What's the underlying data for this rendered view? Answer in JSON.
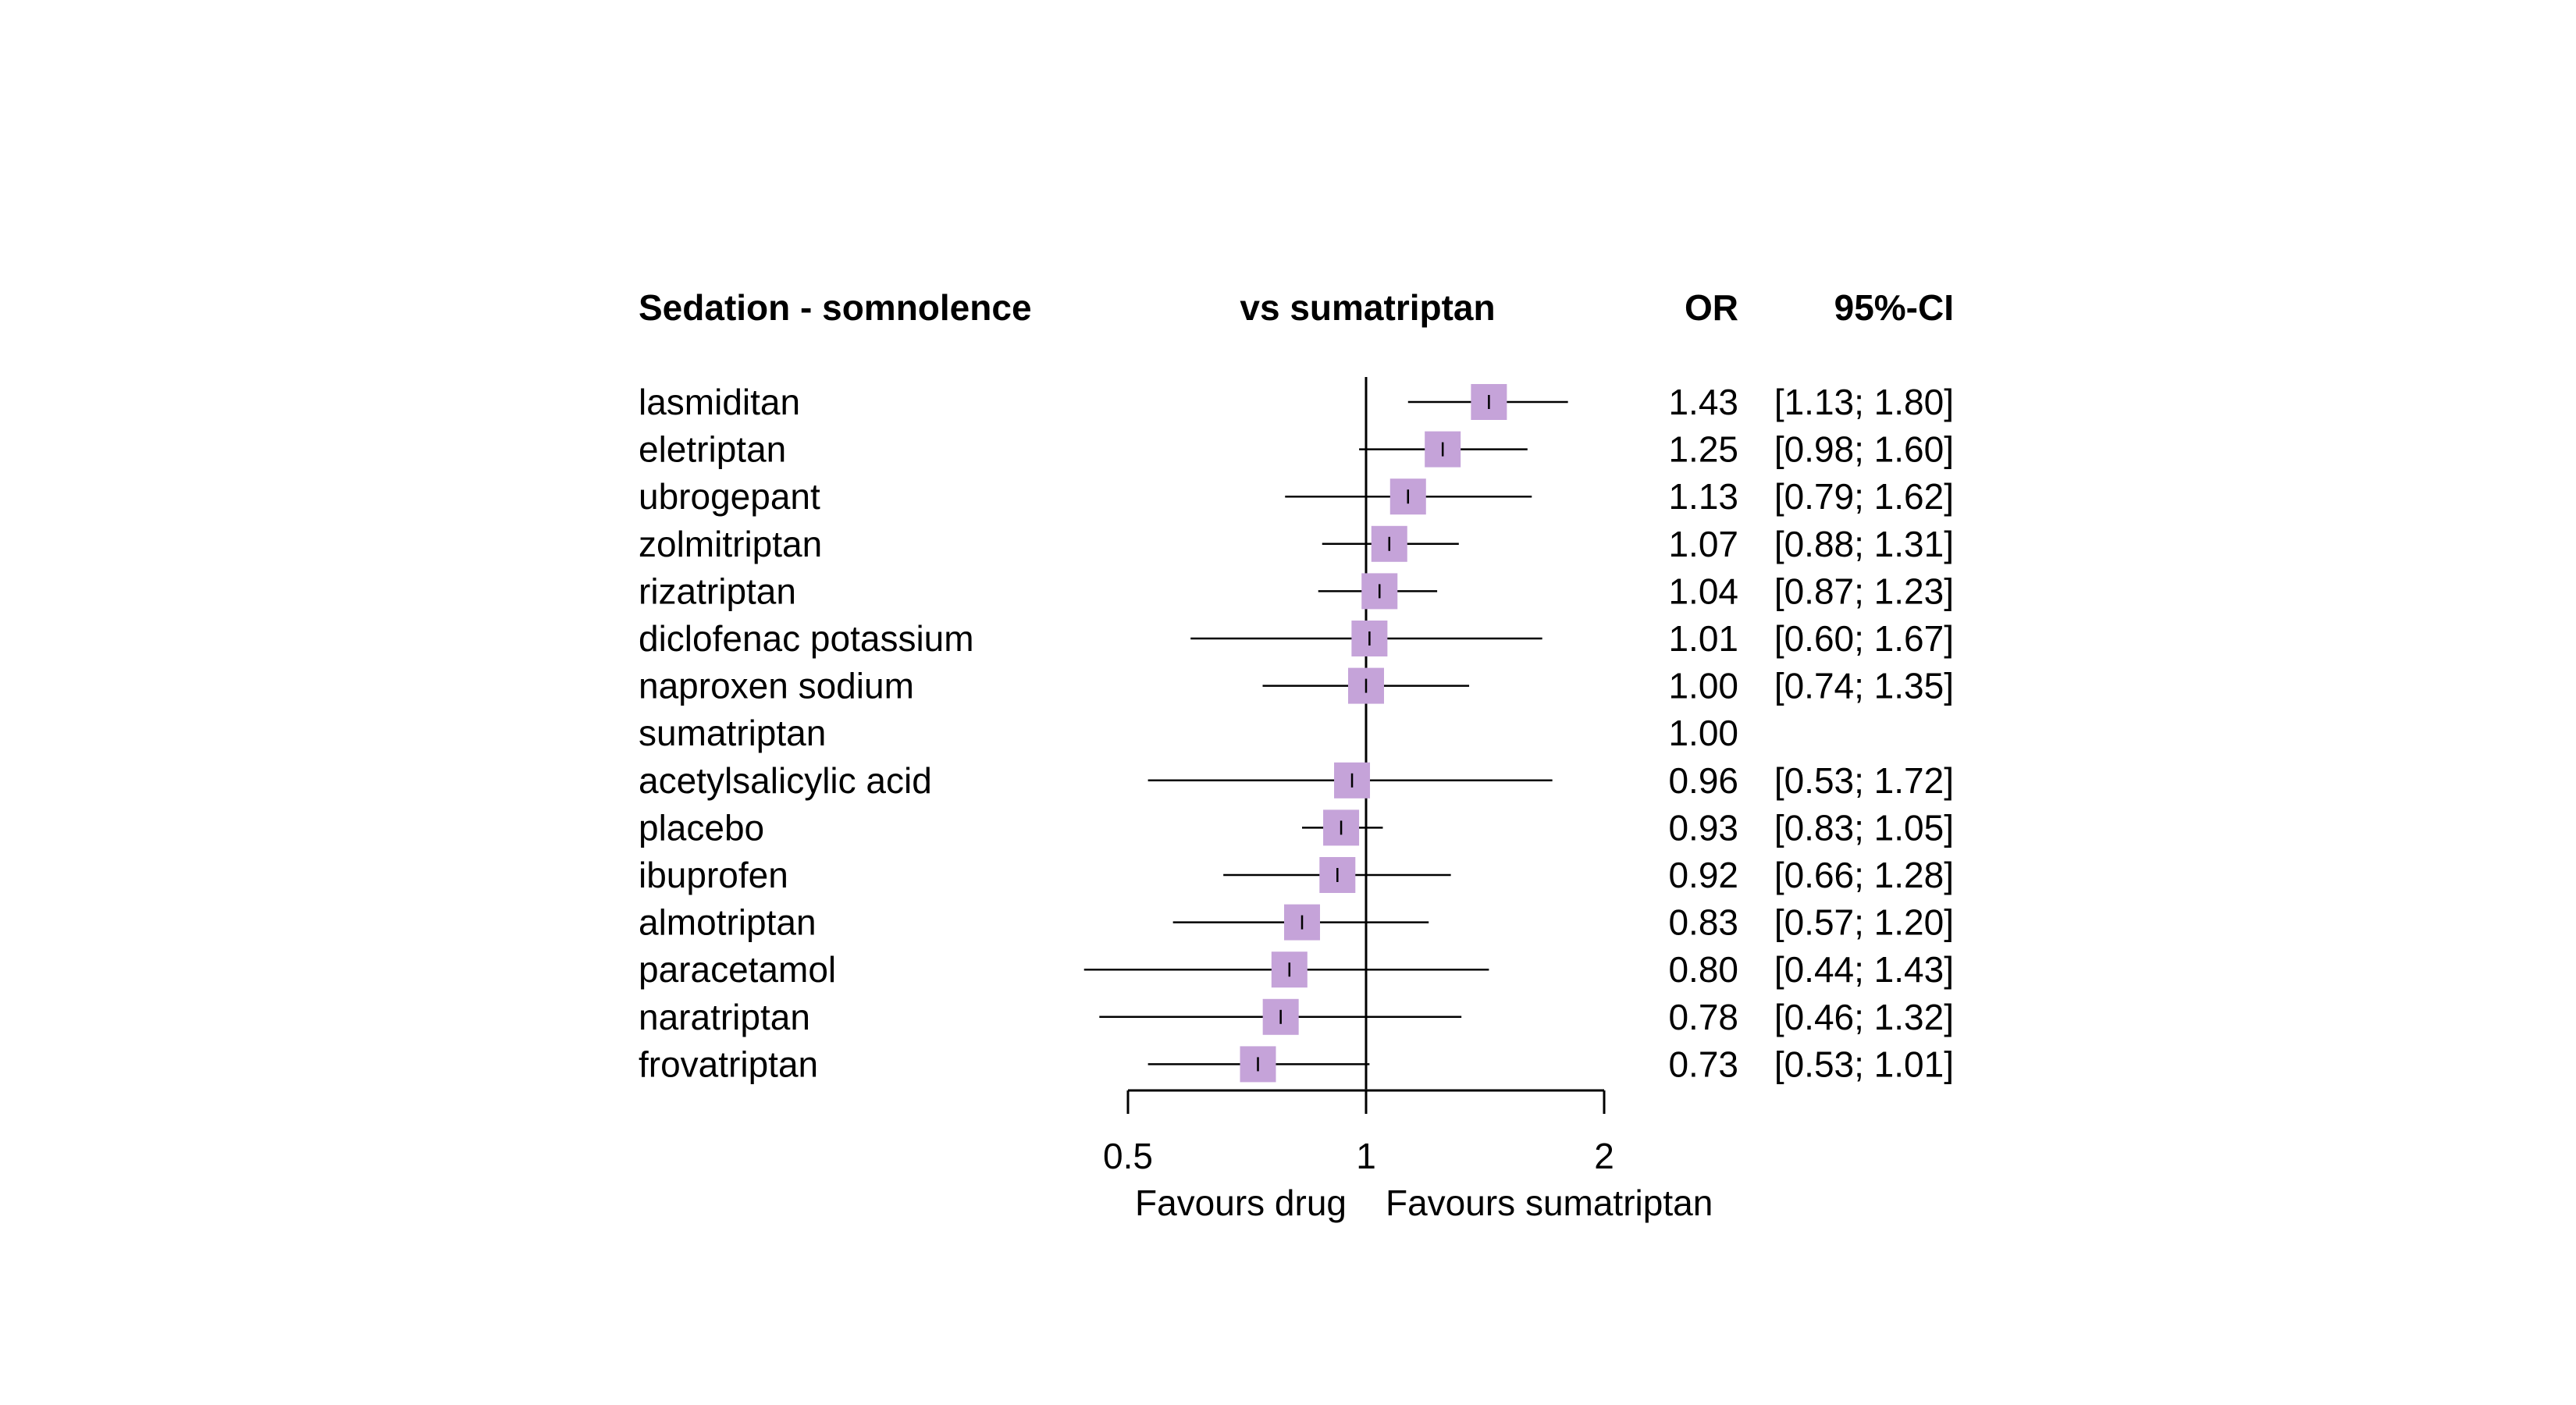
{
  "chart_data": {
    "type": "forest",
    "title": "Sedation - somnolence",
    "comparison_label": "vs sumatriptan",
    "estimate_header": "OR",
    "ci_header": "95%-CI",
    "x_scale": "log",
    "x_range": [
      0.5,
      2
    ],
    "x_ticks": [
      {
        "value": 0.5,
        "label": "0.5"
      },
      {
        "value": 1,
        "label": "1"
      },
      {
        "value": 2,
        "label": "2"
      }
    ],
    "reference_value": 1,
    "left_favours": "Favours drug",
    "right_favours": "Favours sumatriptan",
    "square_color": "#c5a3d9",
    "rows": [
      {
        "label": "lasmiditan",
        "or": 1.43,
        "lo": 1.13,
        "hi": 1.8,
        "or_text": "1.43",
        "ci_text": "[1.13; 1.80]"
      },
      {
        "label": "eletriptan",
        "or": 1.25,
        "lo": 0.98,
        "hi": 1.6,
        "or_text": "1.25",
        "ci_text": "[0.98; 1.60]"
      },
      {
        "label": "ubrogepant",
        "or": 1.13,
        "lo": 0.79,
        "hi": 1.62,
        "or_text": "1.13",
        "ci_text": "[0.79; 1.62]"
      },
      {
        "label": "zolmitriptan",
        "or": 1.07,
        "lo": 0.88,
        "hi": 1.31,
        "or_text": "1.07",
        "ci_text": "[0.88; 1.31]"
      },
      {
        "label": "rizatriptan",
        "or": 1.04,
        "lo": 0.87,
        "hi": 1.23,
        "or_text": "1.04",
        "ci_text": "[0.87; 1.23]"
      },
      {
        "label": "diclofenac potassium",
        "or": 1.01,
        "lo": 0.6,
        "hi": 1.67,
        "or_text": "1.01",
        "ci_text": "[0.60; 1.67]"
      },
      {
        "label": "naproxen sodium",
        "or": 1.0,
        "lo": 0.74,
        "hi": 1.35,
        "or_text": "1.00",
        "ci_text": "[0.74; 1.35]"
      },
      {
        "label": "sumatriptan",
        "or": 1.0,
        "lo": null,
        "hi": null,
        "or_text": "1.00",
        "ci_text": ""
      },
      {
        "label": "acetylsalicylic acid",
        "or": 0.96,
        "lo": 0.53,
        "hi": 1.72,
        "or_text": "0.96",
        "ci_text": "[0.53; 1.72]"
      },
      {
        "label": "placebo",
        "or": 0.93,
        "lo": 0.83,
        "hi": 1.05,
        "or_text": "0.93",
        "ci_text": "[0.83; 1.05]"
      },
      {
        "label": "ibuprofen",
        "or": 0.92,
        "lo": 0.66,
        "hi": 1.28,
        "or_text": "0.92",
        "ci_text": "[0.66; 1.28]"
      },
      {
        "label": "almotriptan",
        "or": 0.83,
        "lo": 0.57,
        "hi": 1.2,
        "or_text": "0.83",
        "ci_text": "[0.57; 1.20]"
      },
      {
        "label": "paracetamol",
        "or": 0.8,
        "lo": 0.44,
        "hi": 1.43,
        "or_text": "0.80",
        "ci_text": "[0.44; 1.43]"
      },
      {
        "label": "naratriptan",
        "or": 0.78,
        "lo": 0.46,
        "hi": 1.32,
        "or_text": "0.78",
        "ci_text": "[0.46; 1.32]"
      },
      {
        "label": "frovatriptan",
        "or": 0.73,
        "lo": 0.53,
        "hi": 1.01,
        "or_text": "0.73",
        "ci_text": "[0.53; 1.01]"
      }
    ]
  }
}
